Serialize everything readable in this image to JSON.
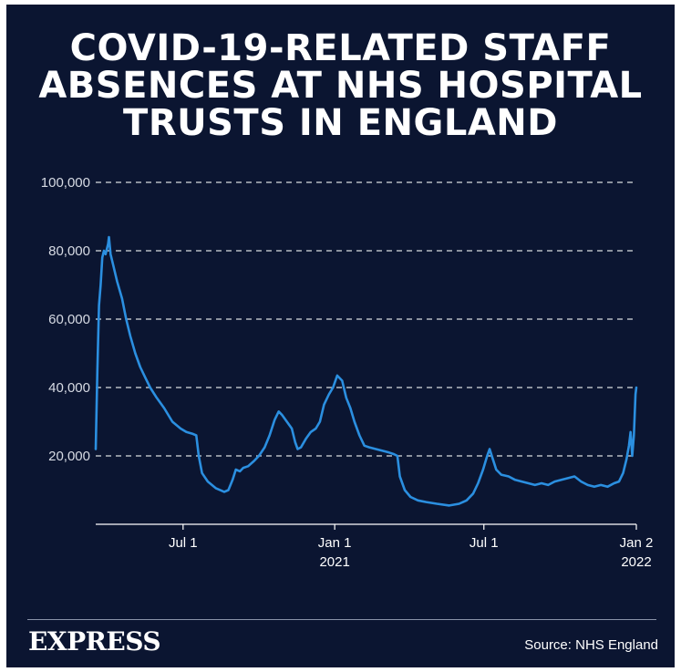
{
  "title_lines": [
    "COVID-19-RELATED STAFF",
    "ABSENCES AT NHS HOSPITAL",
    "TRUSTS IN ENGLAND"
  ],
  "brand": "EXPRESS",
  "source": "Source: NHS England",
  "colors": {
    "background": "#0b1531",
    "line": "#2b8fe0",
    "grid": "#ffffff",
    "text": "#ffffff"
  },
  "chart_data": {
    "type": "line",
    "title": "COVID-19-RELATED STAFF ABSENCES AT NHS HOSPITAL TRUSTS IN ENGLAND",
    "ylim": [
      0,
      100000
    ],
    "xlim": [
      "2020-03-17",
      "2022-01-02"
    ],
    "grid": "horizontal dashed",
    "ytick_values": [
      20000,
      40000,
      60000,
      80000,
      100000
    ],
    "ytick_labels": [
      "20,000",
      "40,000",
      "60,000",
      "80,000",
      "100,000"
    ],
    "xticks": [
      {
        "date": "2020-07-01",
        "label": "Jul 1",
        "sublabel": ""
      },
      {
        "date": "2021-01-01",
        "label": "Jan 1",
        "sublabel": "2021"
      },
      {
        "date": "2021-07-01",
        "label": "Jul 1",
        "sublabel": ""
      },
      {
        "date": "2022-01-02",
        "label": "Jan 2",
        "sublabel": "2022"
      }
    ],
    "series": [
      {
        "points": [
          [
            "2020-03-17",
            22000
          ],
          [
            "2020-03-19",
            45000
          ],
          [
            "2020-03-21",
            64000
          ],
          [
            "2020-03-23",
            70000
          ],
          [
            "2020-03-25",
            78000
          ],
          [
            "2020-03-27",
            80000
          ],
          [
            "2020-03-29",
            79000
          ],
          [
            "2020-04-01",
            82000
          ],
          [
            "2020-04-02",
            84000
          ],
          [
            "2020-04-04",
            79000
          ],
          [
            "2020-04-07",
            76000
          ],
          [
            "2020-04-12",
            71000
          ],
          [
            "2020-04-18",
            66000
          ],
          [
            "2020-04-23",
            60000
          ],
          [
            "2020-04-28",
            55000
          ],
          [
            "2020-05-04",
            50000
          ],
          [
            "2020-05-10",
            46000
          ],
          [
            "2020-05-16",
            43000
          ],
          [
            "2020-05-22",
            40000
          ],
          [
            "2020-05-30",
            37000
          ],
          [
            "2020-06-08",
            34000
          ],
          [
            "2020-06-18",
            30000
          ],
          [
            "2020-06-28",
            28000
          ],
          [
            "2020-07-05",
            27000
          ],
          [
            "2020-07-12",
            26500
          ],
          [
            "2020-07-17",
            26000
          ],
          [
            "2020-07-20",
            20000
          ],
          [
            "2020-07-24",
            15000
          ],
          [
            "2020-07-31",
            12500
          ],
          [
            "2020-08-10",
            10500
          ],
          [
            "2020-08-20",
            9500
          ],
          [
            "2020-08-25",
            10000
          ],
          [
            "2020-08-30",
            13000
          ],
          [
            "2020-09-03",
            16000
          ],
          [
            "2020-09-08",
            15500
          ],
          [
            "2020-09-12",
            16500
          ],
          [
            "2020-09-18",
            17000
          ],
          [
            "2020-09-25",
            18500
          ],
          [
            "2020-10-01",
            20000
          ],
          [
            "2020-10-08",
            22500
          ],
          [
            "2020-10-14",
            26000
          ],
          [
            "2020-10-20",
            30500
          ],
          [
            "2020-10-25",
            33000
          ],
          [
            "2020-10-29",
            32000
          ],
          [
            "2020-11-04",
            30000
          ],
          [
            "2020-11-10",
            28000
          ],
          [
            "2020-11-14",
            24000
          ],
          [
            "2020-11-17",
            22000
          ],
          [
            "2020-11-21",
            22500
          ],
          [
            "2020-11-27",
            25000
          ],
          [
            "2020-12-03",
            27000
          ],
          [
            "2020-12-09",
            28000
          ],
          [
            "2020-12-14",
            30000
          ],
          [
            "2020-12-19",
            35000
          ],
          [
            "2020-12-25",
            38000
          ],
          [
            "2020-12-30",
            40000
          ],
          [
            "2021-01-04",
            43500
          ],
          [
            "2021-01-10",
            42000
          ],
          [
            "2021-01-15",
            37000
          ],
          [
            "2021-01-20",
            34000
          ],
          [
            "2021-01-25",
            30000
          ],
          [
            "2021-01-31",
            26000
          ],
          [
            "2021-02-06",
            23000
          ],
          [
            "2021-02-12",
            22500
          ],
          [
            "2021-02-20",
            22000
          ],
          [
            "2021-02-28",
            21500
          ],
          [
            "2021-03-08",
            21000
          ],
          [
            "2021-03-14",
            20500
          ],
          [
            "2021-03-18",
            20000
          ],
          [
            "2021-03-21",
            14000
          ],
          [
            "2021-03-27",
            10000
          ],
          [
            "2021-04-03",
            8000
          ],
          [
            "2021-04-12",
            7000
          ],
          [
            "2021-04-22",
            6500
          ],
          [
            "2021-05-05",
            6000
          ],
          [
            "2021-05-20",
            5500
          ],
          [
            "2021-06-01",
            6000
          ],
          [
            "2021-06-10",
            7000
          ],
          [
            "2021-06-18",
            9000
          ],
          [
            "2021-06-24",
            12000
          ],
          [
            "2021-06-30",
            16000
          ],
          [
            "2021-07-05",
            20000
          ],
          [
            "2021-07-08",
            22000
          ],
          [
            "2021-07-12",
            19000
          ],
          [
            "2021-07-16",
            16000
          ],
          [
            "2021-07-22",
            14500
          ],
          [
            "2021-07-31",
            14000
          ],
          [
            "2021-08-08",
            13000
          ],
          [
            "2021-08-16",
            12500
          ],
          [
            "2021-08-24",
            12000
          ],
          [
            "2021-09-01",
            11500
          ],
          [
            "2021-09-09",
            12000
          ],
          [
            "2021-09-17",
            11500
          ],
          [
            "2021-09-25",
            12500
          ],
          [
            "2021-10-03",
            13000
          ],
          [
            "2021-10-11",
            13500
          ],
          [
            "2021-10-19",
            14000
          ],
          [
            "2021-10-27",
            12500
          ],
          [
            "2021-11-04",
            11500
          ],
          [
            "2021-11-12",
            11000
          ],
          [
            "2021-11-20",
            11500
          ],
          [
            "2021-11-28",
            11000
          ],
          [
            "2021-12-06",
            12000
          ],
          [
            "2021-12-12",
            12500
          ],
          [
            "2021-12-17",
            15000
          ],
          [
            "2021-12-21",
            19000
          ],
          [
            "2021-12-24",
            23000
          ],
          [
            "2021-12-26",
            27000
          ],
          [
            "2021-12-28",
            20000
          ],
          [
            "2021-12-30",
            26000
          ],
          [
            "2022-01-01",
            38000
          ],
          [
            "2022-01-02",
            40000
          ]
        ]
      }
    ]
  }
}
